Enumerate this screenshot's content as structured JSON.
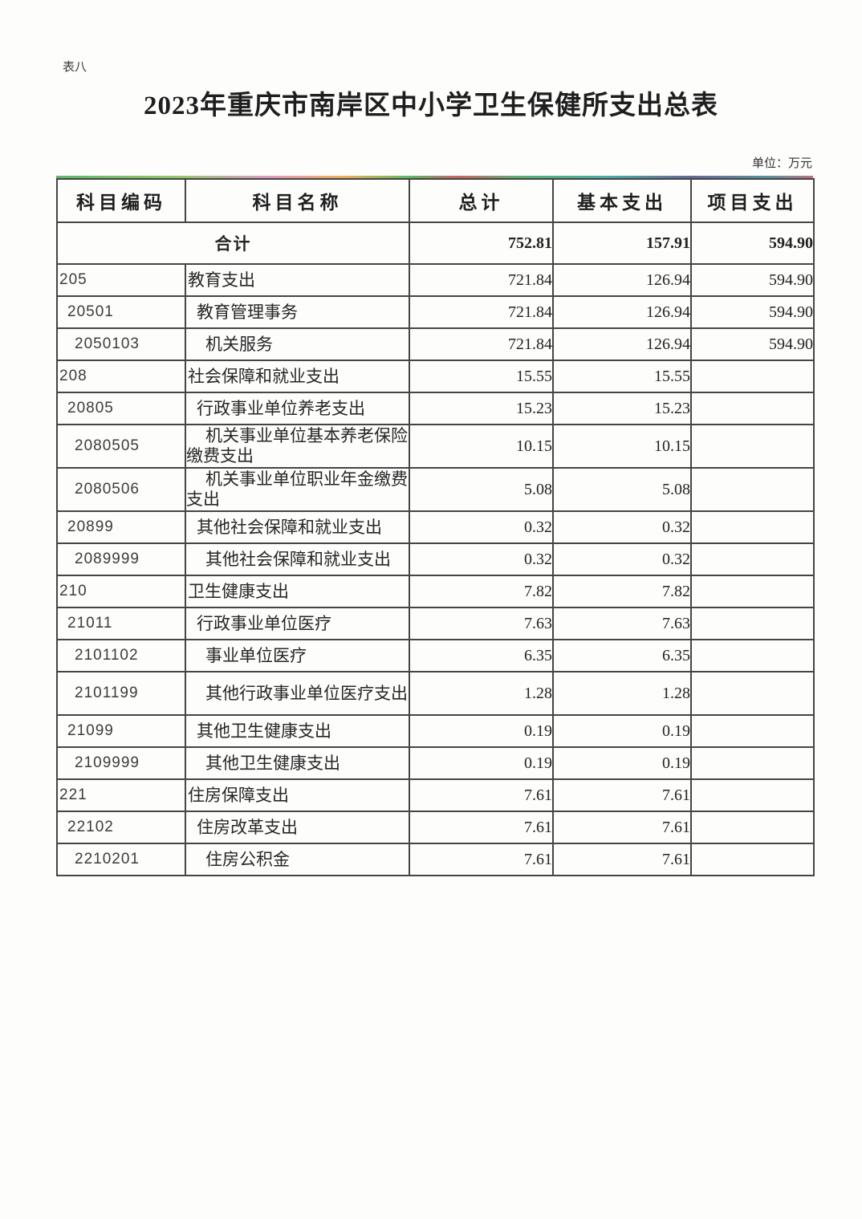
{
  "page": {
    "corner_label": "表八",
    "title": "2023年重庆市南岸区中小学卫生保健所支出总表",
    "unit_note": "单位：万元"
  },
  "table": {
    "headers": {
      "code": "科目编码",
      "name": "科目名称",
      "total": "总计",
      "basic": "基本支出",
      "project": "项目支出"
    },
    "total_row": {
      "label": "合计",
      "total": "752.81",
      "basic": "157.91",
      "project": "594.90"
    },
    "rows": [
      {
        "code": "205",
        "name": "教育支出",
        "total": "721.84",
        "basic": "126.94",
        "project": "594.90"
      },
      {
        "code": "20501",
        "name": "教育管理事务",
        "total": "721.84",
        "basic": "126.94",
        "project": "594.90"
      },
      {
        "code": "2050103",
        "name": "机关服务",
        "total": "721.84",
        "basic": "126.94",
        "project": "594.90"
      },
      {
        "code": "208",
        "name": "社会保障和就业支出",
        "total": "15.55",
        "basic": "15.55",
        "project": ""
      },
      {
        "code": "20805",
        "name": "行政事业单位养老支出",
        "total": "15.23",
        "basic": "15.23",
        "project": ""
      },
      {
        "code": "2080505",
        "name": "机关事业单位基本养老保险缴费支出",
        "total": "10.15",
        "basic": "10.15",
        "project": ""
      },
      {
        "code": "2080506",
        "name": "机关事业单位职业年金缴费支出",
        "total": "5.08",
        "basic": "5.08",
        "project": ""
      },
      {
        "code": "20899",
        "name": "其他社会保障和就业支出",
        "total": "0.32",
        "basic": "0.32",
        "project": ""
      },
      {
        "code": "2089999",
        "name": "其他社会保障和就业支出",
        "total": "0.32",
        "basic": "0.32",
        "project": ""
      },
      {
        "code": "210",
        "name": "卫生健康支出",
        "total": "7.82",
        "basic": "7.82",
        "project": ""
      },
      {
        "code": "21011",
        "name": "行政事业单位医疗",
        "total": "7.63",
        "basic": "7.63",
        "project": ""
      },
      {
        "code": "2101102",
        "name": "事业单位医疗",
        "total": "6.35",
        "basic": "6.35",
        "project": ""
      },
      {
        "code": "2101199",
        "name": "其他行政事业单位医疗支出",
        "total": "1.28",
        "basic": "1.28",
        "project": ""
      },
      {
        "code": "21099",
        "name": "其他卫生健康支出",
        "total": "0.19",
        "basic": "0.19",
        "project": ""
      },
      {
        "code": "2109999",
        "name": "其他卫生健康支出",
        "total": "0.19",
        "basic": "0.19",
        "project": ""
      },
      {
        "code": "221",
        "name": "住房保障支出",
        "total": "7.61",
        "basic": "7.61",
        "project": ""
      },
      {
        "code": "22102",
        "name": "住房改革支出",
        "total": "7.61",
        "basic": "7.61",
        "project": ""
      },
      {
        "code": "2210201",
        "name": "住房公积金",
        "total": "7.61",
        "basic": "7.61",
        "project": ""
      }
    ]
  }
}
